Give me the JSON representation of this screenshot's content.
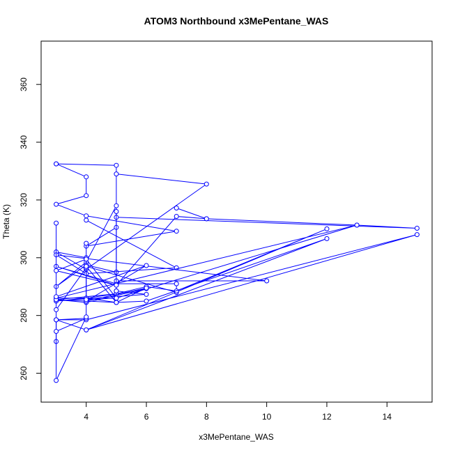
{
  "chart_data": {
    "type": "line",
    "title": "ATOM3 Northbound x3MePentane_WAS",
    "xlabel": "x3MePentane_WAS",
    "ylabel": "Theta (K)",
    "xlim": [
      2.5,
      15.5
    ],
    "ylim": [
      250,
      375
    ],
    "xticks": [
      4,
      6,
      8,
      10,
      12,
      14
    ],
    "yticks": [
      260,
      280,
      300,
      320,
      340,
      360
    ],
    "grid": false,
    "series_color": "#0000ff",
    "series": [
      {
        "points": [
          [
            3,
            332.5
          ],
          [
            4,
            328
          ],
          [
            4,
            321.5
          ],
          [
            3,
            318.5
          ],
          [
            4,
            314.5
          ],
          [
            7,
            309.2
          ],
          [
            4,
            304
          ],
          [
            5,
            310.5
          ],
          [
            5,
            318
          ],
          [
            4,
            298.5
          ],
          [
            3,
            290
          ],
          [
            4,
            297.5
          ],
          [
            5,
            295
          ],
          [
            5,
            332
          ],
          [
            3,
            332.5
          ]
        ]
      },
      {
        "points": [
          [
            5,
            329
          ],
          [
            8,
            325.5
          ],
          [
            4,
            296
          ],
          [
            3,
            302
          ],
          [
            4,
            300
          ],
          [
            4,
            297
          ],
          [
            7,
            288
          ],
          [
            7,
            291
          ],
          [
            5,
            291
          ],
          [
            3,
            297
          ],
          [
            5,
            290.5
          ],
          [
            5,
            292
          ],
          [
            10,
            292
          ],
          [
            3,
            301
          ],
          [
            4,
            294.5
          ],
          [
            7,
            296.5
          ],
          [
            4,
            313
          ]
        ]
      },
      {
        "points": [
          [
            5,
            314
          ],
          [
            15,
            310.2
          ],
          [
            13,
            311.3
          ],
          [
            3,
            286
          ],
          [
            4,
            286
          ],
          [
            5,
            287.5
          ],
          [
            6,
            290
          ],
          [
            7,
            288.5
          ],
          [
            12,
            310
          ],
          [
            4,
            275
          ],
          [
            15,
            308
          ],
          [
            4,
            278.5
          ],
          [
            3,
            278.5
          ]
        ]
      },
      {
        "points": [
          [
            7,
            317.2
          ],
          [
            8,
            313.5
          ],
          [
            13,
            311.3
          ],
          [
            5,
            286
          ],
          [
            6,
            289.3
          ],
          [
            4,
            284.5
          ],
          [
            3,
            285.5
          ],
          [
            5,
            287.5
          ],
          [
            5,
            288.5
          ],
          [
            6,
            287.3
          ],
          [
            3,
            285
          ],
          [
            4,
            286
          ],
          [
            5,
            284.5
          ],
          [
            6,
            285
          ],
          [
            12,
            306.6
          ],
          [
            4,
            275
          ],
          [
            3,
            278.5
          ],
          [
            3,
            271
          ]
        ]
      },
      {
        "points": [
          [
            3,
            312
          ],
          [
            3,
            285.5
          ],
          [
            5,
            284.5
          ],
          [
            6,
            289.5
          ],
          [
            4,
            285
          ],
          [
            6,
            297.3
          ],
          [
            3,
            286.5
          ],
          [
            3,
            274.5
          ],
          [
            4,
            279
          ],
          [
            3,
            278.5
          ],
          [
            3,
            257.5
          ],
          [
            4,
            279.5
          ],
          [
            4,
            296.5
          ],
          [
            3,
            282
          ]
        ]
      },
      {
        "points": [
          [
            5,
            288.5
          ],
          [
            5,
            316
          ],
          [
            5,
            284.5
          ],
          [
            4,
            297
          ],
          [
            4,
            305
          ],
          [
            4,
            285.5
          ],
          [
            5,
            286
          ],
          [
            4,
            299.5
          ],
          [
            3,
            295.5
          ],
          [
            5,
            290.5
          ],
          [
            7,
            314.3
          ],
          [
            8,
            313.5
          ]
        ]
      }
    ]
  }
}
